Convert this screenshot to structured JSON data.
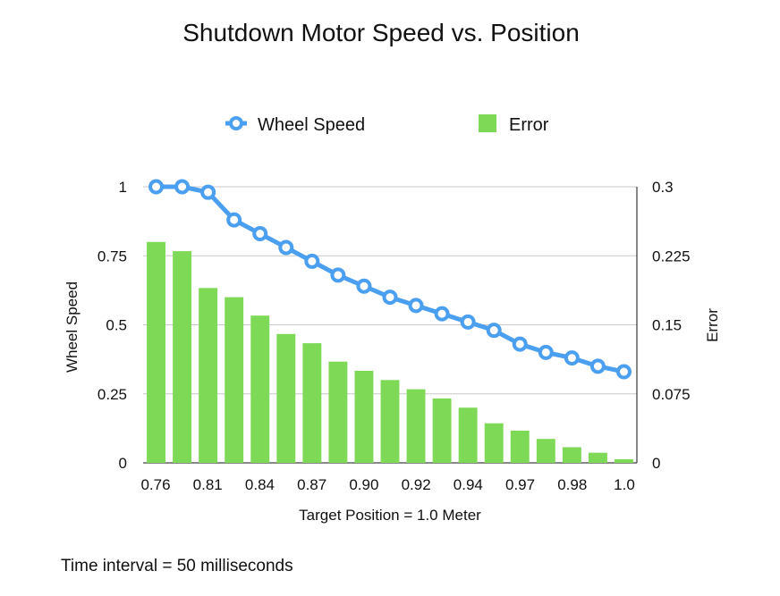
{
  "chart_data": {
    "type": "bar+line",
    "title": "Shutdown Motor Speed vs. Position",
    "xlabel": "Target Position = 1.0 Meter",
    "ylabel_left": "Wheel Speed",
    "ylabel_right": "Error",
    "footnote": "Time interval = 50 milliseconds",
    "legend_placement": "top",
    "grid": true,
    "left_axis": {
      "min": 0,
      "max": 1,
      "ticks": [
        "0",
        "0.25",
        "0.5",
        "0.75",
        "1"
      ]
    },
    "right_axis": {
      "min": 0,
      "max": 0.3,
      "ticks": [
        "0",
        "0.075",
        "0.15",
        "0.225",
        "0.3"
      ]
    },
    "x_tick_labels": [
      "0.76",
      "0.81",
      "0.84",
      "0.87",
      "0.90",
      "0.92",
      "0.94",
      "0.97",
      "0.98",
      "1.0"
    ],
    "series": [
      {
        "name": "Wheel Speed",
        "type": "line",
        "axis": "left",
        "color": "#4a9ff0",
        "values": [
          1.0,
          1.0,
          0.98,
          0.88,
          0.83,
          0.78,
          0.73,
          0.68,
          0.64,
          0.6,
          0.57,
          0.54,
          0.51,
          0.48,
          0.43,
          0.4,
          0.38,
          0.35,
          0.33
        ]
      },
      {
        "name": "Error",
        "type": "bar",
        "axis": "right",
        "color": "#7ed957",
        "values": [
          0.24,
          0.23,
          0.19,
          0.18,
          0.16,
          0.14,
          0.13,
          0.11,
          0.1,
          0.09,
          0.08,
          0.07,
          0.06,
          0.043,
          0.035,
          0.026,
          0.017,
          0.011,
          0.004
        ]
      }
    ]
  }
}
